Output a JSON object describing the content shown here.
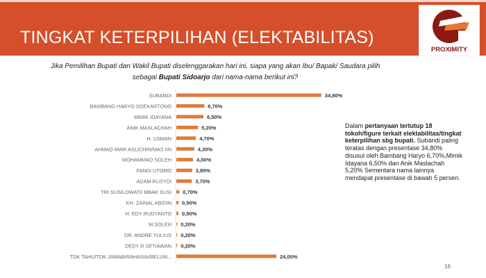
{
  "header": {
    "title": "TINGKAT KETERPILIHAN (ELEKTABILITAS)",
    "logo_text": "PROXIMITY",
    "color": "#d44f2a"
  },
  "question": {
    "part1": "Jika Pemilihan Bupati dan Wakil Bupati diselenggarakan hari ini, siapa yang akan Ibu/ Bapak/ Saudara  pilih sebagai ",
    "bold": "Bupati Sidoarjo",
    "part2": " dari nama-nama berikut ini?"
  },
  "chart_data": {
    "type": "bar",
    "orientation": "horizontal",
    "bar_color": "#e07b39",
    "categories": [
      "SUBANDI",
      "BAMBANG HARYO SOEKARTONO",
      "MIMIK IDAYANA",
      "ANIK MASLACHAH",
      "H. USMAN",
      "AHMAD AMIR ASLICHIN/MAS IIN",
      "MOHAMMAD SOLEH",
      "FANDI UTOMO",
      "ADAM RUSYDI",
      "TRI SUSILOWATI/ MBAK SUSI",
      "KH. ZAINAL ABIDIN",
      "H. EDY RUDYANTO",
      "M.SOLEH",
      "DR. ANDRE YULIUS",
      "DEDY R SETIAWAN",
      "TDK TAHU/TDK JAWAB/RAHASIA/BELUM..."
    ],
    "values": [
      34.8,
      6.7,
      6.5,
      5.2,
      4.7,
      4.3,
      4.0,
      3.8,
      3.7,
      0.7,
      0.5,
      0.5,
      0.2,
      0.2,
      0.2,
      24.0
    ],
    "labels": [
      "34,80%",
      "6,70%",
      "6,50%",
      "5,20%",
      "4,70%",
      "4,30%",
      "4,00%",
      "3,80%",
      "3,70%",
      "0,70%",
      "0,50%",
      "0,50%",
      "0,20%",
      "0,20%",
      "0,20%",
      "24,00%"
    ]
  },
  "note": {
    "p1": "Dalam ",
    "b1": "pertanyaan tertutup 18 tokoh/figure terkait elektabilitas/tingkat keterpilihan sbg bupati.",
    "p2": " Subandi paling teratas dengan presentase 34,80% disusul oleh Bambang Haryo 6,70%,Mimik Idayana 6,50% dan Anik Maslachah 5,20% Sementara nama lainnya mendapat presentase di bawah 5 persen."
  },
  "page_number": "16"
}
